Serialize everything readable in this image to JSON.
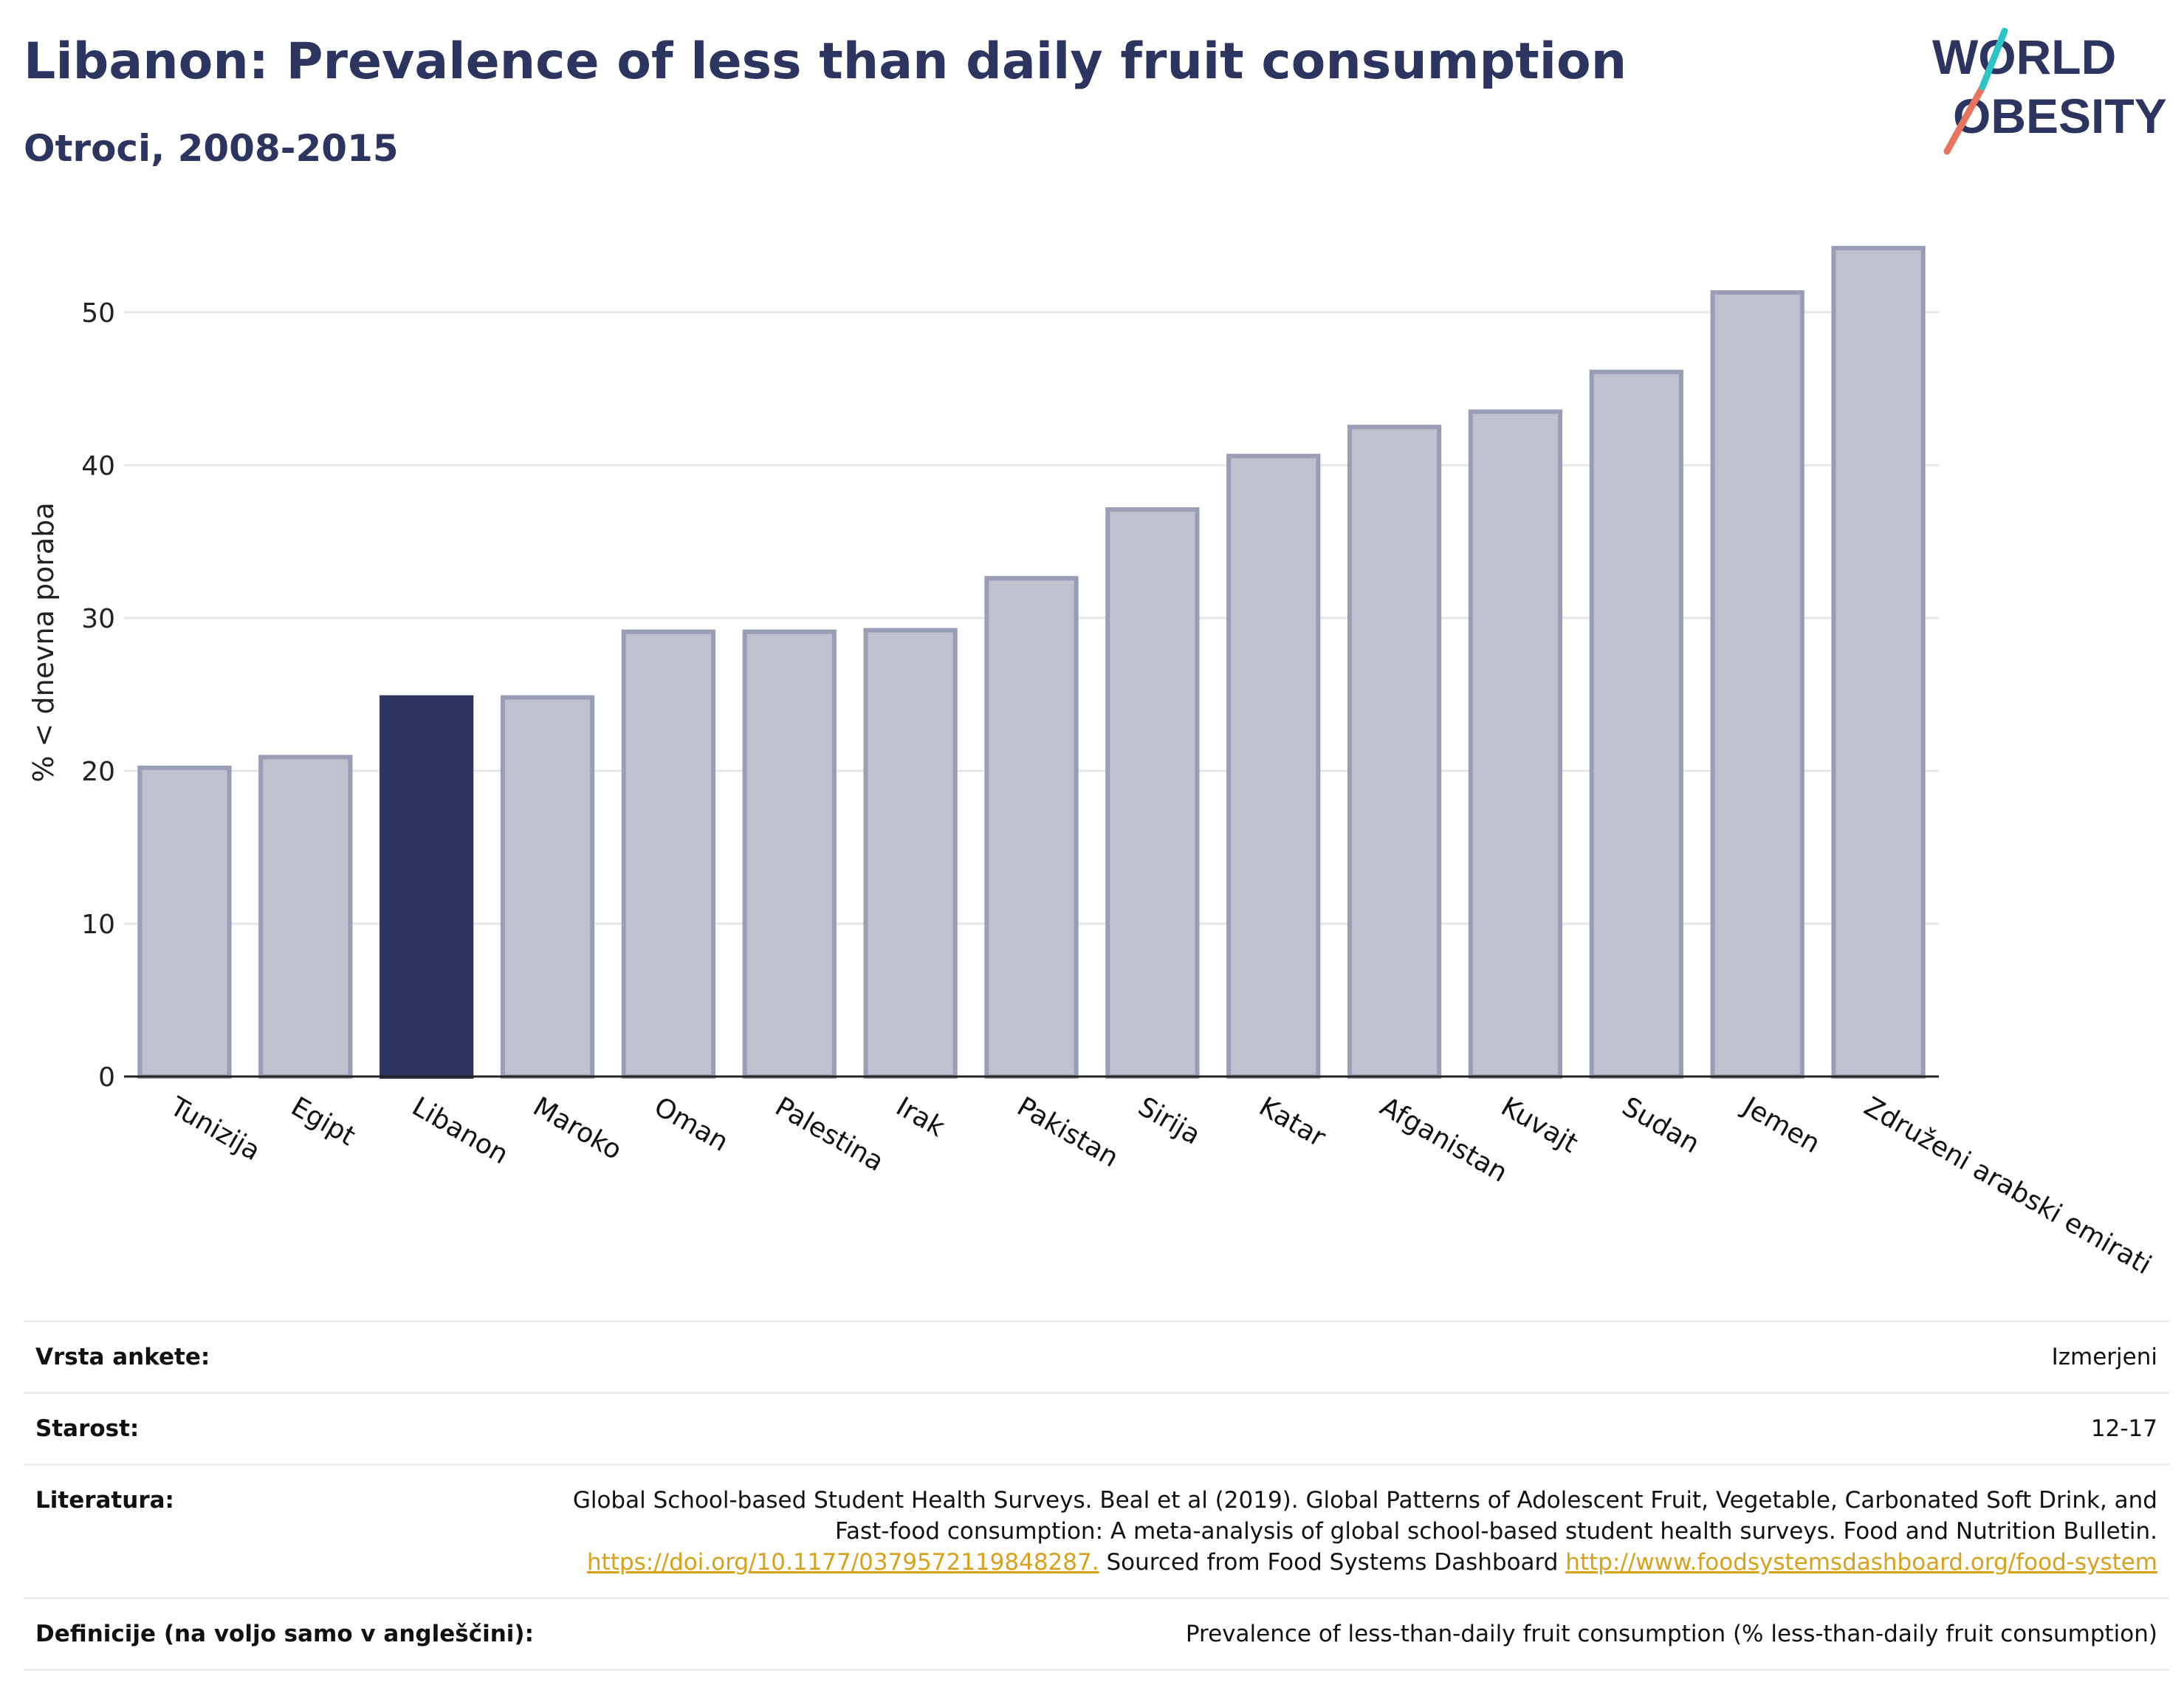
{
  "header": {
    "title": "Libanon: Prevalence of less than daily fruit consumption",
    "subtitle": "Otroci, 2008-2015"
  },
  "logo": {
    "line1": "WORLD",
    "line2": "OBESITY"
  },
  "chart_data": {
    "type": "bar",
    "title": "Libanon: Prevalence of less than daily fruit consumption",
    "subtitle": "Otroci, 2008-2015",
    "ylabel": "% < dnevna poraba",
    "xlabel": "",
    "ylim": [
      0,
      55
    ],
    "yticks": [
      0,
      10,
      20,
      30,
      40,
      50
    ],
    "grid": true,
    "highlight": "Libanon",
    "colors": {
      "bar": "#bfc1ce",
      "bar_edge": "#9a9db6",
      "highlight": "#2b3560",
      "grid": "#e6e6ea",
      "axis": "#222222"
    },
    "categories": [
      "Tunizija",
      "Egipt",
      "Libanon",
      "Maroko",
      "Oman",
      "Palestina",
      "Irak",
      "Pakistan",
      "Sirija",
      "Katar",
      "Afganistan",
      "Kuvajt",
      "Sudan",
      "Jemen",
      "Združeni arabski emirati"
    ],
    "values": [
      20.2,
      20.9,
      24.8,
      24.8,
      29.1,
      29.1,
      29.2,
      32.6,
      37.1,
      40.6,
      42.5,
      43.5,
      46.1,
      51.3,
      54.2
    ]
  },
  "meta": {
    "survey_type": {
      "label": "Vrsta ankete:",
      "value": "Izmerjeni"
    },
    "age": {
      "label": "Starost:",
      "value": "12-17"
    },
    "literature": {
      "label": "Literatura:",
      "text1": "Global School-based Student Health Surveys. Beal et al (2019). Global Patterns of Adolescent Fruit, Vegetable, Carbonated Soft Drink, and Fast-food consumption: A meta-analysis of global school-based student health surveys. Food and Nutrition Bulletin.",
      "link1": "https://doi.org/10.1177/0379572119848287.",
      "text2": "Sourced from Food Systems Dashboard",
      "link2": "http://www.foodsystemsdashboard.org/food-system"
    },
    "definitions": {
      "label": "Definicije (na voljo samo v angleščini):",
      "value": "Prevalence of less-than-daily fruit consumption (% less-than-daily fruit consumption)"
    }
  }
}
